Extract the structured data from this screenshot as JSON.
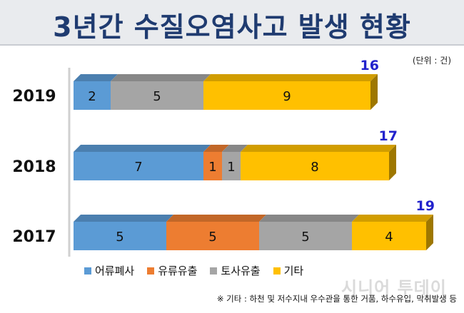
{
  "title": "3년간 수질오염사고 발생 현황",
  "unit_label": "(단위 : 건)",
  "footnote": "※ 기타 : 하천 및 저수지내 우수관을 통한 거품, 하수유입, 막취발생 등",
  "watermark": "시니어 투데이",
  "colors": {
    "어류폐사": "#5b9bd5",
    "유류유출": "#ed7d31",
    "토사유출": "#a5a5a5",
    "기타": "#ffc000",
    "total": "#2222cc"
  },
  "chart_data": {
    "type": "bar",
    "orientation": "horizontal",
    "stacked": true,
    "categories": [
      "2019",
      "2018",
      "2017"
    ],
    "series": [
      {
        "name": "어류폐사",
        "values": [
          2,
          7,
          5
        ]
      },
      {
        "name": "유류유출",
        "values": [
          0,
          1,
          5
        ]
      },
      {
        "name": "토사유출",
        "values": [
          5,
          1,
          5
        ]
      },
      {
        "name": "기타",
        "values": [
          9,
          8,
          4
        ]
      }
    ],
    "totals": [
      16,
      17,
      19
    ],
    "legend_position": "bottom-left",
    "grid": false
  }
}
